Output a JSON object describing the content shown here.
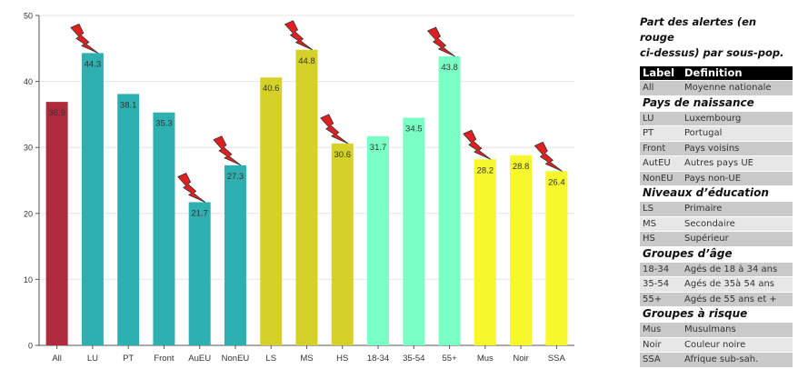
{
  "legend": {
    "title_line1": "Part des alertes (en rouge",
    "title_line2": "ci-dessus) par sous-pop.",
    "header_label": "Label",
    "header_definition": "Definition",
    "rows": [
      {
        "kind": "row",
        "label": "All",
        "definition": "Moyenne nationale"
      },
      {
        "kind": "group",
        "title": "Pays de naissance"
      },
      {
        "kind": "row",
        "label": "LU",
        "definition": "Luxembourg"
      },
      {
        "kind": "row",
        "label": "PT",
        "definition": "Portugal"
      },
      {
        "kind": "row",
        "label": "Front",
        "definition": "Pays voisins"
      },
      {
        "kind": "row",
        "label": "AutEU",
        "definition": "Autres pays UE"
      },
      {
        "kind": "row",
        "label": "NonEU",
        "definition": "Pays non-UE"
      },
      {
        "kind": "group",
        "title": "Niveaux d’éducation"
      },
      {
        "kind": "row",
        "label": "LS",
        "definition": "Primaire"
      },
      {
        "kind": "row",
        "label": "MS",
        "definition": "Secondaire"
      },
      {
        "kind": "row",
        "label": "HS",
        "definition": "Supérieur"
      },
      {
        "kind": "group",
        "title": "Groupes d’âge"
      },
      {
        "kind": "row",
        "label": "18-34",
        "definition": "Agés de 18 à 34 ans"
      },
      {
        "kind": "row",
        "label": "35-54",
        "definition": "Agés de 35à 54 ans"
      },
      {
        "kind": "row",
        "label": "55+",
        "definition": "Agés de 55 ans et +"
      },
      {
        "kind": "group",
        "title": "Groupes à risque"
      },
      {
        "kind": "row",
        "label": "Mus",
        "definition": "Musulmans"
      },
      {
        "kind": "row",
        "label": "Noir",
        "definition": "Couleur noire"
      },
      {
        "kind": "row",
        "label": "SSA",
        "definition": "Afrique sub-sah."
      }
    ]
  },
  "chart_data": {
    "type": "bar",
    "categories": [
      "All",
      "LU",
      "PT",
      "Front",
      "AuEU",
      "NonEU",
      "LS",
      "MS",
      "HS",
      "18-34",
      "35-54",
      "55+",
      "Mus",
      "Noir",
      "SSA"
    ],
    "values": [
      36.9,
      44.3,
      38.1,
      35.3,
      21.7,
      27.3,
      40.6,
      44.8,
      30.6,
      31.7,
      34.5,
      43.8,
      28.2,
      28.8,
      26.4
    ],
    "value_labels": [
      "36.9",
      "44.3",
      "38.1",
      "35.3",
      "21.7",
      "27.3",
      "40.6",
      "44.8",
      "30.6",
      "31.7",
      "34.5",
      "43.8",
      "28.2",
      "28.8",
      "26.4"
    ],
    "alert": [
      false,
      true,
      false,
      false,
      true,
      true,
      false,
      true,
      true,
      false,
      false,
      true,
      true,
      false,
      true
    ],
    "colors": [
      "#b02a3e",
      "#2fb0b0",
      "#2fb0b0",
      "#2fb0b0",
      "#2fb0b0",
      "#2fb0b0",
      "#d6d12a",
      "#d6d12a",
      "#d6d12a",
      "#7affc4",
      "#7affc4",
      "#7affc4",
      "#f7f72e",
      "#f7f72e",
      "#f7f72e"
    ],
    "groups": [
      [
        1,
        5
      ],
      [
        6,
        8
      ],
      [
        9,
        11
      ],
      [
        12,
        14
      ]
    ],
    "ylim": [
      0,
      50
    ],
    "yticks": [
      "0",
      "10",
      "20",
      "30",
      "40",
      "50"
    ],
    "grid": true,
    "alert_color": "#e02020"
  }
}
